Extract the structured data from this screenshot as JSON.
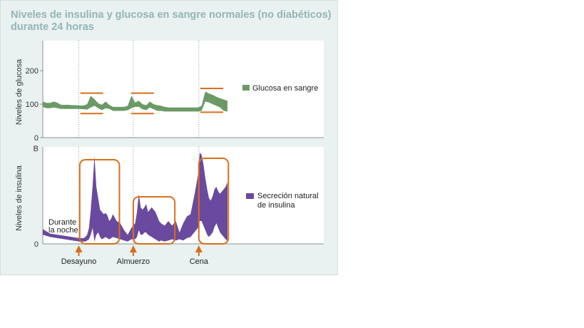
{
  "chart_data": [
    {
      "type": "area",
      "title": "Niveles de insulina y glucosa en sangre normales (no diabéticos) durante 24 horas",
      "ylabel": "Niveles de glucosa",
      "yticks": [
        "0",
        "100",
        "200"
      ],
      "ylim": [
        0,
        290
      ],
      "series": [
        {
          "name": "Glucosa en sangre",
          "color": "#6b9a66",
          "x": [
            0,
            2,
            4,
            6,
            8,
            10,
            12,
            14,
            16,
            18,
            20,
            22,
            24,
            26,
            28,
            30,
            32,
            34,
            36,
            38,
            40,
            42,
            44,
            46,
            48,
            50,
            52,
            54,
            56,
            58,
            60,
            62,
            64,
            66,
            68,
            70,
            72,
            74,
            76,
            78,
            80,
            82,
            84,
            86,
            88,
            90,
            92,
            94,
            96,
            98,
            100
          ],
          "upper": [
            108,
            104,
            104,
            108,
            104,
            98,
            98,
            98,
            97,
            97,
            96,
            96,
            100,
            125,
            115,
            103,
            98,
            108,
            98,
            92,
            92,
            92,
            92,
            95,
            125,
            105,
            110,
            100,
            97,
            108,
            100,
            97,
            95,
            92,
            90,
            90,
            90,
            90,
            90,
            90,
            90,
            90,
            90,
            95,
            138,
            132,
            128,
            122,
            118,
            114,
            110
          ],
          "lower": [
            92,
            88,
            88,
            90,
            88,
            86,
            86,
            86,
            86,
            86,
            86,
            85,
            84,
            90,
            95,
            88,
            82,
            88,
            86,
            80,
            80,
            80,
            80,
            82,
            88,
            92,
            92,
            85,
            82,
            90,
            85,
            80,
            80,
            78,
            78,
            78,
            78,
            78,
            78,
            78,
            78,
            78,
            78,
            80,
            108,
            105,
            100,
            95,
            90,
            80,
            78
          ]
        }
      ],
      "annotations": [
        {
          "x": 26.5,
          "upper": 133,
          "lower": 72
        },
        {
          "x": 54.0,
          "upper": 133,
          "lower": 72
        },
        {
          "x": 91.5,
          "upper": 147,
          "lower": 76
        }
      ]
    },
    {
      "type": "area",
      "ylabel": "Niveles de insulina",
      "yticks": [
        "0",
        "B"
      ],
      "series": [
        {
          "name": "Secreción natural de insulina",
          "color": "#6a4a9e",
          "x": [
            0,
            4,
            8,
            12,
            16,
            20,
            22,
            23,
            24,
            25,
            26,
            27,
            28,
            29,
            30,
            31,
            32,
            33,
            34,
            35,
            36,
            37,
            38,
            40,
            42,
            44,
            46,
            48,
            50,
            51,
            52,
            53,
            54,
            55,
            56,
            57,
            58,
            59,
            60,
            61,
            62,
            63,
            64,
            66,
            68,
            70,
            72,
            74,
            76,
            78,
            80,
            82,
            84,
            85,
            86,
            87,
            88,
            89,
            90,
            91,
            92,
            93,
            94,
            95,
            96,
            97,
            98,
            99,
            100
          ],
          "upper": [
            13,
            9,
            8,
            7,
            6,
            5,
            5,
            6,
            8,
            14,
            30,
            51,
            77,
            50,
            40,
            30,
            28,
            26,
            27,
            25,
            20,
            22,
            26,
            20,
            18,
            12,
            8,
            14,
            18,
            28,
            44,
            32,
            30,
            32,
            35,
            28,
            30,
            32,
            30,
            28,
            24,
            20,
            18,
            16,
            20,
            16,
            20,
            10,
            18,
            24,
            26,
            42,
            60,
            80,
            78,
            70,
            58,
            48,
            40,
            38,
            42,
            48,
            50,
            46,
            44,
            46,
            48,
            50,
            54
          ],
          "lower": [
            8,
            6,
            5,
            4,
            3,
            2,
            2,
            2,
            3,
            4,
            8,
            14,
            2,
            8,
            10,
            6,
            4,
            5,
            6,
            5,
            4,
            5,
            6,
            5,
            4,
            3,
            2,
            4,
            4,
            6,
            12,
            8,
            8,
            10,
            10,
            8,
            7,
            6,
            5,
            4,
            3,
            2,
            3,
            2,
            3,
            4,
            3,
            4,
            3,
            5,
            6,
            10,
            14,
            20,
            20,
            16,
            12,
            8,
            6,
            8,
            10,
            15,
            18,
            14,
            10,
            8,
            6,
            4,
            3
          ]
        }
      ],
      "annotations": [
        "Durante la noche"
      ],
      "meal_markers": [
        {
          "label": "Desayuno",
          "x": 19
        },
        {
          "label": "Almuerzo",
          "x": 48.5
        },
        {
          "label": "Cena",
          "x": 84
        }
      ],
      "highlight_boxes": [
        {
          "x_start": 20,
          "x_end": 41.5
        },
        {
          "x_start": 49,
          "x_end": 71.5
        },
        {
          "x_start": 84.5,
          "x_end": 100.5
        }
      ]
    }
  ]
}
